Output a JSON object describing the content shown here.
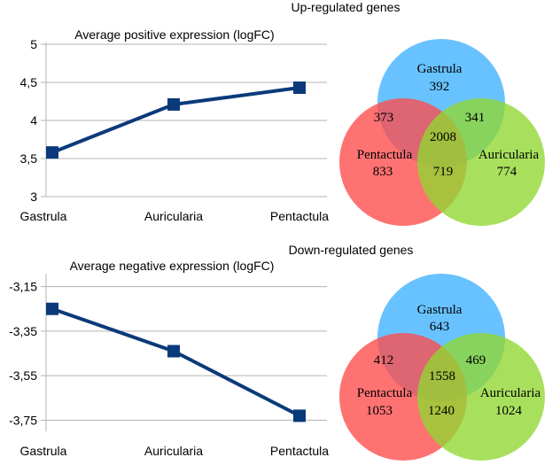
{
  "colors": {
    "line": "#0b3a7a",
    "axis": "#b3b3b3",
    "grid": "#b3b3b3",
    "gastrula": "#3db1ff",
    "pentactula": "#ff4a4a",
    "auricularia": "#8fd72f"
  },
  "sections": [
    {
      "title": "Up-regulated genes",
      "chart_title": "Average positive expression (logFC)",
      "venn": {
        "gastrula_label": "Gastrula",
        "gastrula_only": "392",
        "pentactula_label": "Pentactula",
        "pentactula_only": "833",
        "auricularia_label": "Auricularia",
        "auricularia_only": "774",
        "gastrula_pentactula": "373",
        "gastrula_auricularia": "341",
        "pentactula_auricularia": "719",
        "all_three": "2008"
      }
    },
    {
      "title": "Down-regulated genes",
      "chart_title": "Average negative expression (logFC)",
      "venn": {
        "gastrula_label": "Gastrula",
        "gastrula_only": "643",
        "pentactula_label": "Pentactula",
        "pentactula_only": "1053",
        "auricularia_label": "Auricularia",
        "auricularia_only": "1024",
        "gastrula_pentactula": "412",
        "gastrula_auricularia": "469",
        "pentactula_auricularia": "1240",
        "all_three": "1558"
      }
    }
  ],
  "chart_data": [
    {
      "type": "line",
      "title": "Average positive expression (logFC)",
      "xlabel": "",
      "ylabel": "",
      "categories": [
        "Gastrula",
        "Auricularia",
        "Pentactula"
      ],
      "values": [
        3.58,
        4.21,
        4.43
      ],
      "ylim": [
        3,
        5
      ],
      "yticks": [
        3,
        3.5,
        4,
        4.5,
        5
      ],
      "ytick_labels": [
        "3",
        "3,5",
        "4",
        "4,5",
        "5"
      ],
      "grid": true,
      "marker": "square"
    },
    {
      "type": "line",
      "title": "Average negative expression (logFC)",
      "xlabel": "",
      "ylabel": "",
      "categories": [
        "Gastrula",
        "Auricularia",
        "Pentactula"
      ],
      "values": [
        -3.25,
        -3.44,
        -3.73
      ],
      "ylim": [
        -3.8,
        -3.1
      ],
      "yticks": [
        -3.15,
        -3.35,
        -3.55,
        -3.75
      ],
      "ytick_labels": [
        "-3,15",
        "-3,35",
        "-3,55",
        "-3,75"
      ],
      "grid": true,
      "marker": "square"
    }
  ]
}
